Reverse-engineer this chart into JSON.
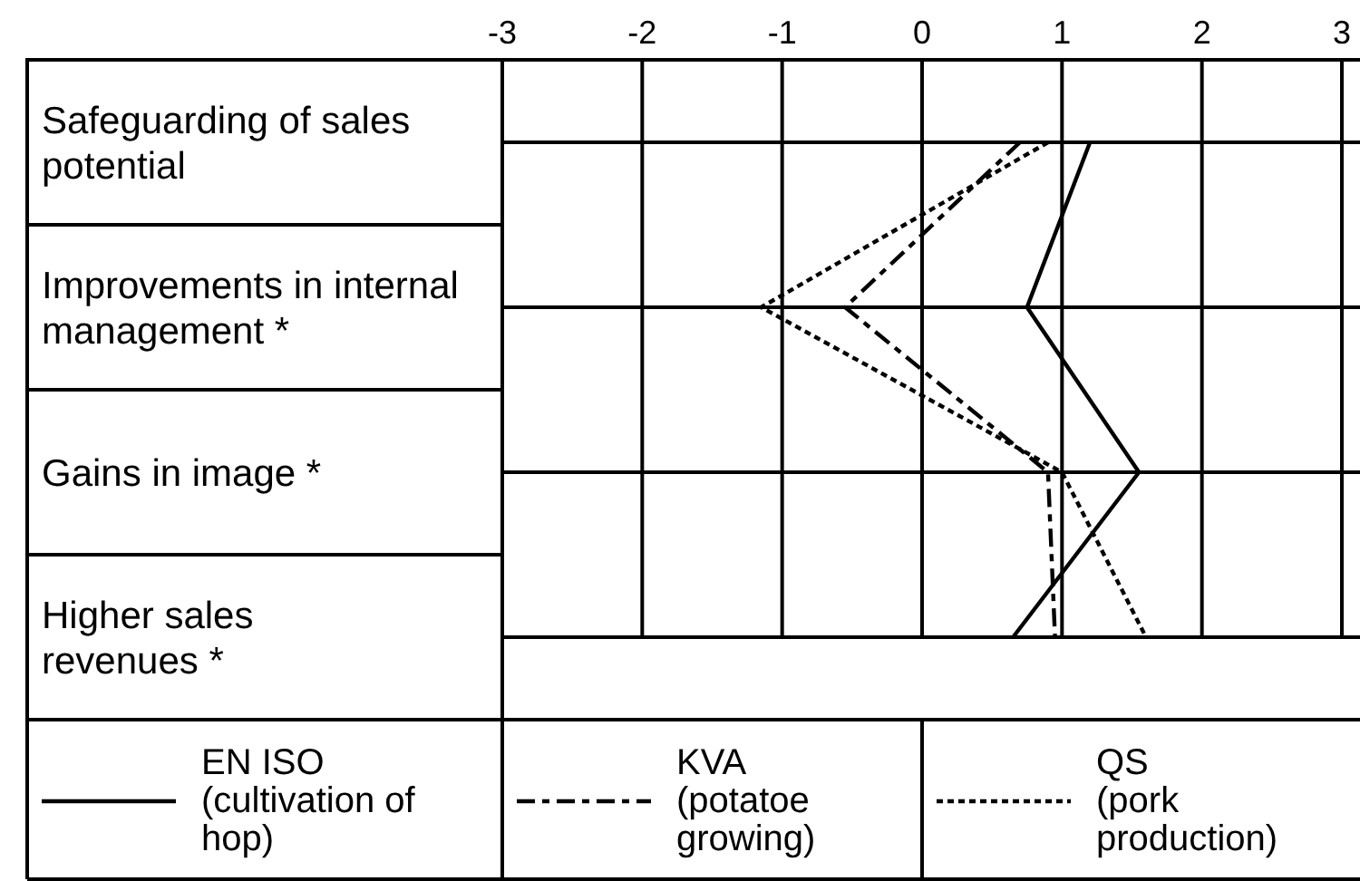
{
  "chart_data": {
    "type": "line",
    "orientation": "horizontal",
    "categories": [
      "Safeguarding of sales\npotential",
      "Improvements in internal\nmanagement *",
      "Gains in image *",
      "Higher sales\nrevenues *"
    ],
    "xlim": [
      -3,
      3
    ],
    "xticks": [
      -3,
      -2,
      -1,
      0,
      1,
      2,
      3
    ],
    "grid": true,
    "legend": "bottom",
    "series": [
      {
        "name": "EN ISO\n(cultivation of\nhop)",
        "color": "#000000",
        "line_style": "solid",
        "values": [
          1.2,
          0.75,
          1.55,
          0.65
        ]
      },
      {
        "name": "KVA\n(potatoe\ngrowing)",
        "color": "#000000",
        "line_style": "dashed",
        "values": [
          0.7,
          -0.55,
          0.9,
          0.95
        ]
      },
      {
        "name": "QS\n(pork\nproduction)",
        "color": "#000000",
        "line_style": "dotted",
        "values": [
          0.9,
          -1.15,
          1.0,
          1.6
        ]
      }
    ]
  }
}
